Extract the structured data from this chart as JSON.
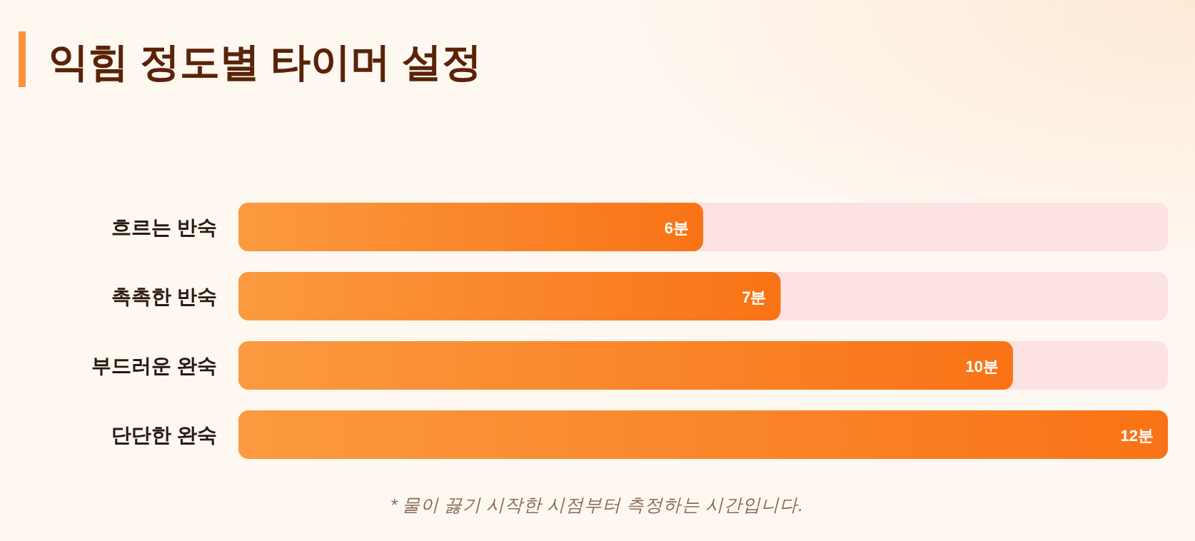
{
  "chart_data": {
    "type": "bar",
    "orientation": "horizontal",
    "title": "익힘 정도별 타이머 설정",
    "categories": [
      "흐르는 반숙",
      "촉촉한 반숙",
      "부드러운 완숙",
      "단단한 완숙"
    ],
    "values": [
      6,
      7,
      10,
      12
    ],
    "value_labels": [
      "6분",
      "7분",
      "10분",
      "12분"
    ],
    "color": "#f97316",
    "xlim": [
      0,
      12
    ],
    "annotations": [
      "* 물이 끓기 시작한 시점부터 측정하는 시간입니다."
    ]
  }
}
